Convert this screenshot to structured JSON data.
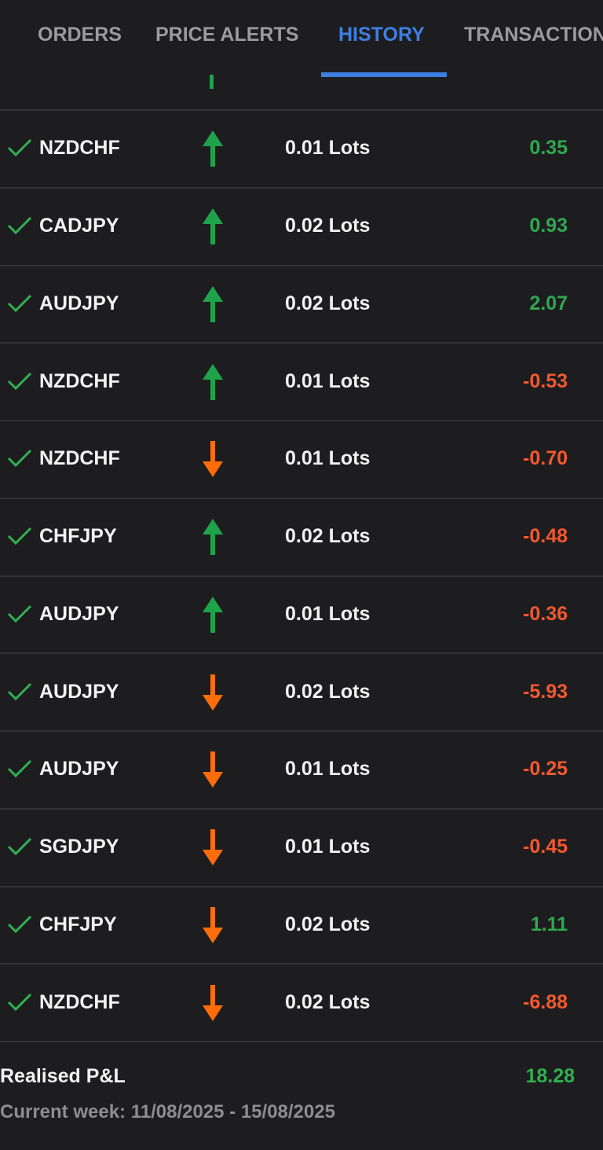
{
  "tabs": [
    {
      "label": "ORDERS",
      "active": false
    },
    {
      "label": "PRICE ALERTS",
      "active": false
    },
    {
      "label": "HISTORY",
      "active": true
    },
    {
      "label": "TRANSACTIONS",
      "active": false
    }
  ],
  "rows": [
    {
      "symbol": "NZDCHF",
      "direction": "up",
      "lots": "0.01 Lots",
      "pnl": "0.35"
    },
    {
      "symbol": "CADJPY",
      "direction": "up",
      "lots": "0.02 Lots",
      "pnl": "0.93"
    },
    {
      "symbol": "AUDJPY",
      "direction": "up",
      "lots": "0.02 Lots",
      "pnl": "2.07"
    },
    {
      "symbol": "NZDCHF",
      "direction": "up",
      "lots": "0.01 Lots",
      "pnl": "-0.53"
    },
    {
      "symbol": "NZDCHF",
      "direction": "down",
      "lots": "0.01 Lots",
      "pnl": "-0.70"
    },
    {
      "symbol": "CHFJPY",
      "direction": "up",
      "lots": "0.02 Lots",
      "pnl": "-0.48"
    },
    {
      "symbol": "AUDJPY",
      "direction": "up",
      "lots": "0.01 Lots",
      "pnl": "-0.36"
    },
    {
      "symbol": "AUDJPY",
      "direction": "down",
      "lots": "0.02 Lots",
      "pnl": "-5.93"
    },
    {
      "symbol": "AUDJPY",
      "direction": "down",
      "lots": "0.01 Lots",
      "pnl": "-0.25"
    },
    {
      "symbol": "SGDJPY",
      "direction": "down",
      "lots": "0.01 Lots",
      "pnl": "-0.45"
    },
    {
      "symbol": "CHFJPY",
      "direction": "down",
      "lots": "0.02 Lots",
      "pnl": "1.11"
    },
    {
      "symbol": "NZDCHF",
      "direction": "down",
      "lots": "0.02 Lots",
      "pnl": "-6.88"
    }
  ],
  "footer": {
    "label": "Realised P&L",
    "total": "18.28",
    "period": "Current week: 11/08/2025 - 15/08/2025"
  }
}
